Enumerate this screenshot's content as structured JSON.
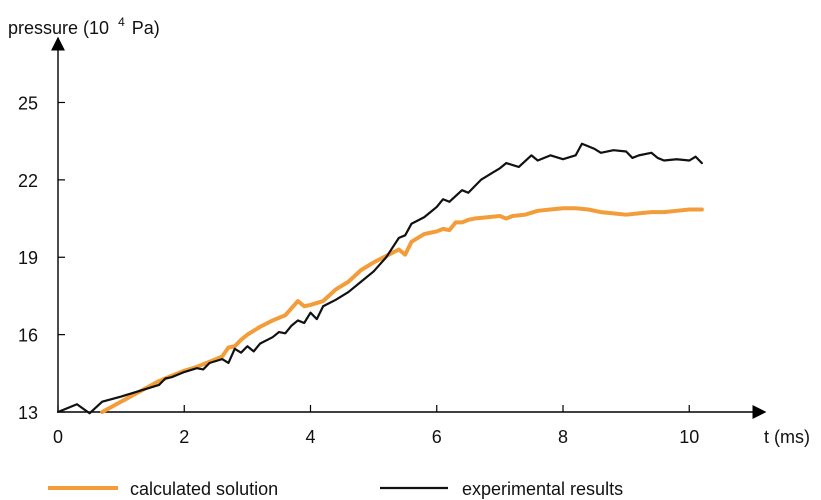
{
  "chart_data": {
    "type": "line",
    "ylabel_prefix": "pressure (10",
    "ylabel_exponent": "4",
    "ylabel_suffix": "Pa)",
    "xlabel": "t (ms)",
    "xlim": [
      0,
      11.2
    ],
    "ylim": [
      13,
      27.5
    ],
    "xticks": [
      0,
      2,
      4,
      6,
      8,
      10
    ],
    "yticks": [
      13,
      16,
      19,
      22,
      25
    ],
    "grid": false,
    "legend_position": "bottom",
    "series": [
      {
        "name": "calculated solution",
        "color": "#f39c3a",
        "x": [
          0.7,
          1.0,
          1.3,
          1.6,
          1.8,
          2.0,
          2.2,
          2.4,
          2.6,
          2.7,
          2.8,
          2.9,
          3.0,
          3.2,
          3.4,
          3.6,
          3.8,
          3.9,
          4.0,
          4.2,
          4.4,
          4.6,
          4.8,
          5.0,
          5.2,
          5.4,
          5.5,
          5.6,
          5.7,
          5.8,
          5.9,
          6.0,
          6.1,
          6.2,
          6.3,
          6.4,
          6.5,
          6.6,
          6.8,
          7.0,
          7.1,
          7.2,
          7.4,
          7.6,
          7.8,
          8.0,
          8.2,
          8.4,
          8.6,
          8.8,
          9.0,
          9.2,
          9.4,
          9.6,
          9.8,
          10.0,
          10.2
        ],
        "y": [
          13.0,
          13.4,
          13.8,
          14.2,
          14.4,
          14.6,
          14.75,
          14.95,
          15.15,
          15.5,
          15.55,
          15.8,
          16.0,
          16.3,
          16.55,
          16.75,
          17.3,
          17.1,
          17.15,
          17.3,
          17.75,
          18.05,
          18.5,
          18.8,
          19.05,
          19.3,
          19.1,
          19.6,
          19.75,
          19.9,
          19.95,
          20.0,
          20.1,
          20.05,
          20.35,
          20.35,
          20.45,
          20.5,
          20.55,
          20.6,
          20.5,
          20.6,
          20.65,
          20.8,
          20.85,
          20.9,
          20.9,
          20.85,
          20.75,
          20.7,
          20.65,
          20.7,
          20.75,
          20.75,
          20.8,
          20.85,
          20.85
        ]
      },
      {
        "name": "experimental results",
        "color": "#111111",
        "x": [
          0.0,
          0.3,
          0.5,
          0.7,
          1.0,
          1.2,
          1.4,
          1.6,
          1.7,
          1.8,
          2.0,
          2.2,
          2.3,
          2.4,
          2.6,
          2.7,
          2.8,
          2.9,
          3.0,
          3.1,
          3.2,
          3.4,
          3.5,
          3.6,
          3.7,
          3.8,
          3.9,
          4.0,
          4.1,
          4.2,
          4.4,
          4.6,
          4.8,
          5.0,
          5.2,
          5.4,
          5.5,
          5.6,
          5.8,
          5.9,
          6.0,
          6.1,
          6.2,
          6.4,
          6.5,
          6.7,
          6.9,
          7.0,
          7.1,
          7.3,
          7.5,
          7.6,
          7.8,
          8.0,
          8.2,
          8.3,
          8.5,
          8.6,
          8.8,
          9.0,
          9.1,
          9.2,
          9.4,
          9.5,
          9.6,
          9.8,
          10.0,
          10.1,
          10.2
        ],
        "y": [
          13.0,
          13.3,
          12.95,
          13.4,
          13.6,
          13.75,
          13.9,
          14.05,
          14.3,
          14.35,
          14.55,
          14.7,
          14.65,
          14.9,
          15.05,
          14.9,
          15.45,
          15.3,
          15.55,
          15.35,
          15.65,
          15.9,
          16.1,
          16.05,
          16.35,
          16.55,
          16.45,
          16.85,
          16.6,
          17.1,
          17.35,
          17.65,
          18.05,
          18.45,
          19.0,
          19.75,
          19.85,
          20.3,
          20.55,
          20.75,
          20.95,
          21.25,
          21.15,
          21.6,
          21.5,
          22.0,
          22.3,
          22.45,
          22.65,
          22.5,
          22.95,
          22.75,
          22.95,
          22.8,
          22.95,
          23.4,
          23.2,
          23.05,
          23.15,
          23.1,
          22.85,
          22.95,
          23.05,
          22.85,
          22.75,
          22.8,
          22.75,
          22.9,
          22.65
        ]
      }
    ]
  }
}
